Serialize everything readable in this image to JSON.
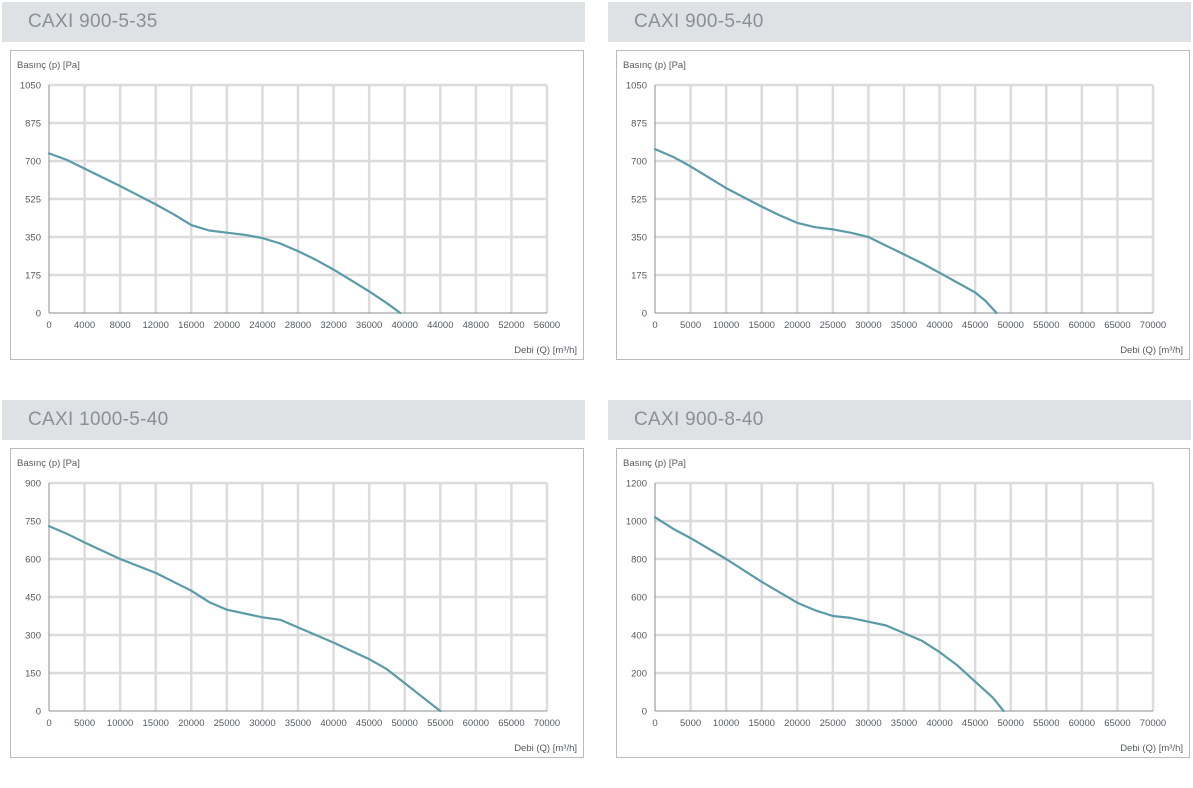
{
  "chart_data": [
    {
      "type": "line",
      "title": "CAXI 900-5-35",
      "xlabel": "Debi (Q) [m³/h]",
      "ylabel": "Basınç (p) [Pa]",
      "xlim": [
        0,
        56000
      ],
      "ylim": [
        0,
        1050
      ],
      "xticks": [
        0,
        4000,
        8000,
        12000,
        16000,
        20000,
        24000,
        28000,
        32000,
        36000,
        40000,
        44000,
        48000,
        52000,
        56000
      ],
      "yticks": [
        0,
        175,
        350,
        525,
        700,
        875,
        1050
      ],
      "grid": true,
      "series": [
        {
          "color": "#5b9aa8",
          "x": [
            0,
            2000,
            4000,
            8000,
            12000,
            14000,
            16000,
            18000,
            20000,
            22000,
            24000,
            26000,
            28000,
            30000,
            32000,
            34000,
            36000,
            38000,
            39500
          ],
          "y": [
            735,
            705,
            665,
            585,
            500,
            455,
            405,
            380,
            370,
            360,
            345,
            320,
            285,
            245,
            200,
            150,
            100,
            45,
            0
          ]
        }
      ]
    },
    {
      "type": "line",
      "title": "CAXI 900-5-40",
      "xlabel": "Debi (Q) [m³/h]",
      "ylabel": "Basınç (p) [Pa]",
      "xlim": [
        0,
        70000
      ],
      "ylim": [
        0,
        1050
      ],
      "xticks": [
        0,
        5000,
        10000,
        15000,
        20000,
        25000,
        30000,
        35000,
        40000,
        45000,
        50000,
        55000,
        60000,
        65000,
        70000
      ],
      "yticks": [
        0,
        175,
        350,
        525,
        700,
        875,
        1050
      ],
      "grid": true,
      "series": [
        {
          "color": "#5b9aa8",
          "x": [
            0,
            2500,
            5000,
            10000,
            15000,
            17500,
            20000,
            22500,
            25000,
            27500,
            30000,
            32500,
            35000,
            37500,
            40000,
            42500,
            45000,
            46500,
            48000
          ],
          "y": [
            755,
            720,
            675,
            575,
            490,
            450,
            415,
            395,
            385,
            370,
            350,
            310,
            270,
            230,
            185,
            140,
            95,
            55,
            0
          ]
        }
      ]
    },
    {
      "type": "line",
      "title": "CAXI 1000-5-40",
      "xlabel": "Debi (Q) [m³/h]",
      "ylabel": "Basınç (p) [Pa]",
      "xlim": [
        0,
        70000
      ],
      "ylim": [
        0,
        900
      ],
      "xticks": [
        0,
        5000,
        10000,
        15000,
        20000,
        25000,
        30000,
        35000,
        40000,
        45000,
        50000,
        55000,
        60000,
        65000,
        70000
      ],
      "yticks": [
        0,
        150,
        300,
        450,
        600,
        750,
        900
      ],
      "grid": true,
      "series": [
        {
          "color": "#5b9aa8",
          "x": [
            0,
            2500,
            5000,
            10000,
            15000,
            20000,
            22500,
            25000,
            27500,
            30000,
            32500,
            35000,
            40000,
            45000,
            47500,
            50000,
            52500,
            55000
          ],
          "y": [
            730,
            700,
            665,
            600,
            545,
            475,
            430,
            400,
            385,
            370,
            360,
            330,
            270,
            205,
            165,
            110,
            55,
            0
          ]
        }
      ]
    },
    {
      "type": "line",
      "title": "CAXI 900-8-40",
      "xlabel": "Debi (Q) [m³/h]",
      "ylabel": "Basınç (p) [Pa]",
      "xlim": [
        0,
        70000
      ],
      "ylim": [
        0,
        1200
      ],
      "xticks": [
        0,
        5000,
        10000,
        15000,
        20000,
        25000,
        30000,
        35000,
        40000,
        45000,
        50000,
        55000,
        60000,
        65000,
        70000
      ],
      "yticks": [
        0,
        200,
        400,
        600,
        800,
        1000,
        1200
      ],
      "grid": true,
      "series": [
        {
          "color": "#5b9aa8",
          "x": [
            0,
            2500,
            5000,
            10000,
            15000,
            20000,
            22500,
            25000,
            27500,
            30000,
            32500,
            35000,
            37500,
            40000,
            42500,
            45000,
            47500,
            49000
          ],
          "y": [
            1020,
            960,
            910,
            800,
            680,
            570,
            530,
            500,
            490,
            470,
            450,
            410,
            370,
            310,
            240,
            155,
            70,
            0
          ]
        }
      ]
    }
  ]
}
